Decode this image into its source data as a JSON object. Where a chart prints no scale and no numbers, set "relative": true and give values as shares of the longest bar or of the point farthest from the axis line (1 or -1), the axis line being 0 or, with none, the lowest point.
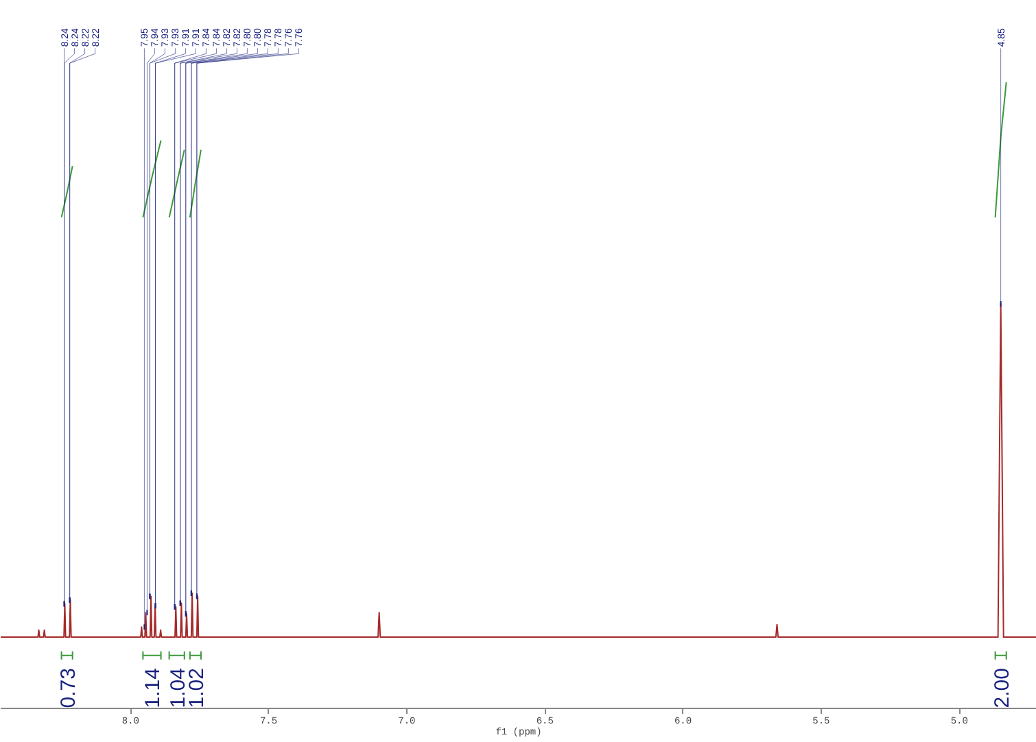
{
  "chart_data": {
    "type": "line",
    "relative": true,
    "xlabel": "f1 (ppm)",
    "xlim": [
      8.47,
      4.72
    ],
    "xticks": [
      {
        "value": 8.0,
        "label": "8.0"
      },
      {
        "value": 7.5,
        "label": "7.5"
      },
      {
        "value": 7.0,
        "label": "7.0"
      },
      {
        "value": 6.5,
        "label": "6.5"
      },
      {
        "value": 6.0,
        "label": "6.0"
      },
      {
        "value": 5.5,
        "label": "5.5"
      },
      {
        "value": 5.0,
        "label": "5.0"
      }
    ],
    "grid": false,
    "series": [
      {
        "color": "#a52a2a",
        "x": [
          8.47,
          8.335,
          8.332,
          8.329,
          8.315,
          8.312,
          8.309,
          8.241,
          8.238,
          8.235,
          8.221,
          8.218,
          8.215,
          7.963,
          7.96,
          7.957,
          7.948,
          7.945,
          7.942,
          7.929,
          7.926,
          7.923,
          7.914,
          7.911,
          7.908,
          7.894,
          7.891,
          7.888,
          7.839,
          7.836,
          7.833,
          7.819,
          7.816,
          7.813,
          7.8,
          7.797,
          7.794,
          7.78,
          7.777,
          7.774,
          7.76,
          7.757,
          7.754,
          7.104,
          7.1,
          7.096,
          5.664,
          5.66,
          5.656,
          4.86,
          4.85,
          4.84,
          4.72
        ],
        "values": [
          0.114,
          0.114,
          0.125,
          0.114,
          0.114,
          0.125,
          0.114,
          0.114,
          0.167,
          0.114,
          0.114,
          0.173,
          0.114,
          0.114,
          0.13,
          0.114,
          0.114,
          0.153,
          0.114,
          0.114,
          0.179,
          0.114,
          0.114,
          0.164,
          0.114,
          0.114,
          0.125,
          0.114,
          0.114,
          0.162,
          0.114,
          0.114,
          0.168,
          0.114,
          0.114,
          0.151,
          0.114,
          0.114,
          0.184,
          0.114,
          0.114,
          0.179,
          0.114,
          0.114,
          0.153,
          0.114,
          0.114,
          0.134,
          0.114,
          0.114,
          0.646,
          0.114,
          0.114
        ]
      },
      {
        "color": "#3a9a3a",
        "x": [
          8.25,
          8.23,
          8.21
        ],
        "values": [
          0.784,
          0.823,
          0.866
        ]
      },
      {
        "color": "#3a9a3a",
        "x": [
          7.955,
          7.922,
          7.89
        ],
        "values": [
          0.784,
          0.849,
          0.907
        ]
      },
      {
        "color": "#3a9a3a",
        "x": [
          7.86,
          7.832,
          7.805
        ],
        "values": [
          0.784,
          0.84,
          0.892
        ]
      },
      {
        "color": "#3a9a3a",
        "x": [
          7.785,
          7.765,
          7.745
        ],
        "values": [
          0.784,
          0.84,
          0.892
        ]
      },
      {
        "color": "#3a9a3a",
        "x": [
          4.87,
          4.85,
          4.83
        ],
        "values": [
          0.784,
          0.912,
          1.0
        ]
      }
    ],
    "annotations": [
      {
        "text": "8.24",
        "x": 8.24,
        "y": 0.167
      },
      {
        "text": "8.24",
        "x": 8.24,
        "y": 0.167
      },
      {
        "text": "8.22",
        "x": 8.22,
        "y": 0.173
      },
      {
        "text": "8.22",
        "x": 8.22,
        "y": 0.173
      },
      {
        "text": "7.95",
        "x": 7.95,
        "y": 0.13
      },
      {
        "text": "7.94",
        "x": 7.94,
        "y": 0.153
      },
      {
        "text": "7.93",
        "x": 7.93,
        "y": 0.179
      },
      {
        "text": "7.93",
        "x": 7.93,
        "y": 0.179
      },
      {
        "text": "7.91",
        "x": 7.91,
        "y": 0.164
      },
      {
        "text": "7.91",
        "x": 7.91,
        "y": 0.164
      },
      {
        "text": "7.84",
        "x": 7.84,
        "y": 0.162
      },
      {
        "text": "7.84",
        "x": 7.84,
        "y": 0.162
      },
      {
        "text": "7.82",
        "x": 7.82,
        "y": 0.168
      },
      {
        "text": "7.82",
        "x": 7.82,
        "y": 0.168
      },
      {
        "text": "7.80",
        "x": 7.8,
        "y": 0.151
      },
      {
        "text": "7.80",
        "x": 7.8,
        "y": 0.151
      },
      {
        "text": "7.78",
        "x": 7.78,
        "y": 0.184
      },
      {
        "text": "7.78",
        "x": 7.78,
        "y": 0.184
      },
      {
        "text": "7.76",
        "x": 7.76,
        "y": 0.179
      },
      {
        "text": "7.76",
        "x": 7.76,
        "y": 0.179
      },
      {
        "text": "4.85",
        "x": 4.85,
        "y": 0.646
      },
      "0.73",
      "1.14",
      "1.04",
      "1.02",
      "2.00"
    ]
  }
}
